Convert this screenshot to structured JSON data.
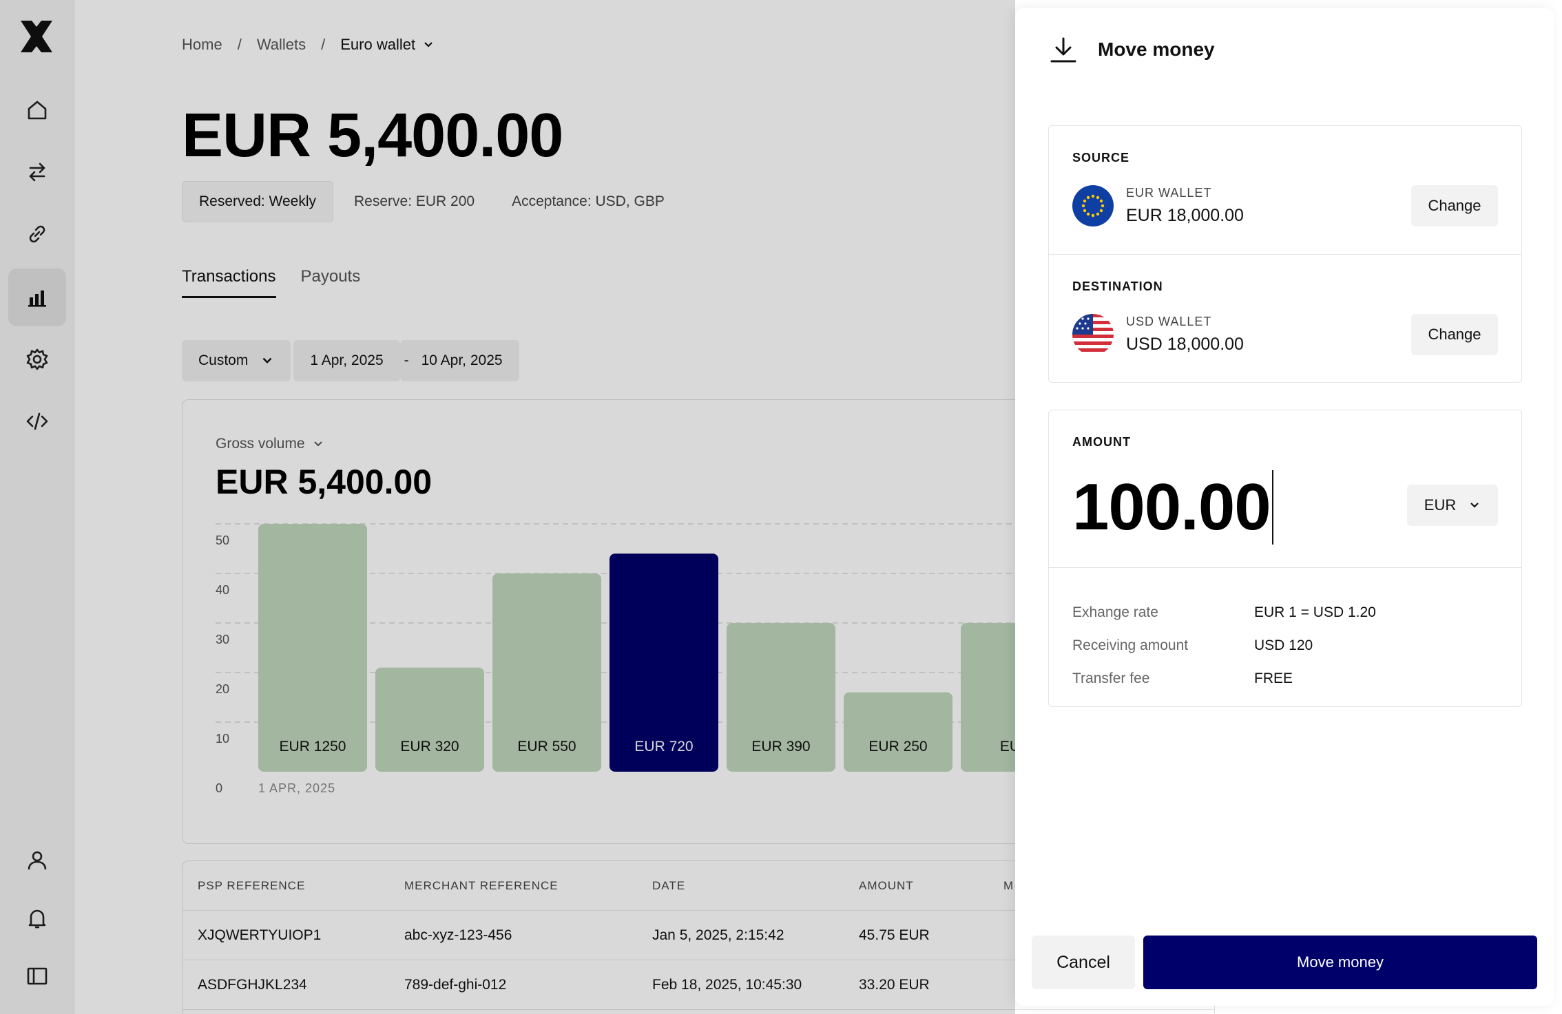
{
  "sidebar": {
    "logo": "brand-logo",
    "items": [
      {
        "name": "home",
        "icon": "home-icon"
      },
      {
        "name": "transfers",
        "icon": "arrows-icon"
      },
      {
        "name": "links",
        "icon": "link-icon"
      },
      {
        "name": "reports",
        "icon": "bar-chart-icon",
        "active": true
      },
      {
        "name": "settings",
        "icon": "gear-icon"
      },
      {
        "name": "developers",
        "icon": "code-icon"
      }
    ],
    "bottom": [
      {
        "name": "account",
        "icon": "user-icon"
      },
      {
        "name": "notifications",
        "icon": "bell-icon"
      },
      {
        "name": "toggle-sidebar",
        "icon": "sidebar-icon"
      }
    ]
  },
  "breadcrumb": {
    "home": "Home",
    "sep": "/",
    "wallets": "Wallets",
    "current": "Euro wallet"
  },
  "wallet": {
    "balance": "EUR 5,400.00",
    "reserved": "Reserved: Weekly",
    "reserve": "Reserve: EUR 200",
    "acceptance": "Acceptance: USD, GBP"
  },
  "tabs": [
    {
      "label": "Transactions",
      "active": true
    },
    {
      "label": "Payouts",
      "active": false
    }
  ],
  "filters": {
    "period": "Custom",
    "from": "1 Apr, 2025",
    "dash": "-",
    "to": "10 Apr, 2025"
  },
  "metric": {
    "label": "Gross volume",
    "value": "EUR 5,400.00"
  },
  "chart_data": {
    "type": "bar",
    "yticks": [
      0,
      10,
      20,
      30,
      40,
      50
    ],
    "ylim": [
      0,
      50
    ],
    "grid": true,
    "first_x_label": "1 APR, 2025",
    "categories": [
      "",
      "",
      "",
      "",
      "",
      "",
      ""
    ],
    "values": [
      50,
      21,
      40,
      44,
      30,
      16,
      30
    ],
    "data_labels": [
      "EUR 1250",
      "EUR 320",
      "EUR 550",
      "EUR 720",
      "EUR 390",
      "EUR 250",
      "EUR"
    ],
    "highlight_index": 3,
    "colors": {
      "bar": "#bfd6bc",
      "highlight": "#00006b"
    }
  },
  "table": {
    "headers": [
      "PSP REFERENCE",
      "MERCHANT REFERENCE",
      "DATE",
      "AMOUNT",
      "M"
    ],
    "rows": [
      [
        "XJQWERTYUIOP1",
        "abc-xyz-123-456",
        "Jan 5, 2025, 2:15:42",
        "45.75 EUR"
      ],
      [
        "ASDFGHJKL234",
        "789-def-ghi-012",
        "Feb 18, 2025, 10:45:30",
        "33.20 EUR"
      ]
    ]
  },
  "panel": {
    "title": "Move money",
    "icon": "download-icon",
    "source": {
      "label": "SOURCE",
      "wallet": "EUR WALLET",
      "balance": "EUR 18,000.00",
      "change": "Change",
      "flag": "eu-flag-icon"
    },
    "destination": {
      "label": "DESTINATION",
      "wallet": "USD WALLET",
      "balance": "USD 18,000.00",
      "change": "Change",
      "flag": "us-flag-icon"
    },
    "amount": {
      "label": "AMOUNT",
      "value": "100.00",
      "currency": "EUR"
    },
    "info": [
      {
        "label": "Exhange rate",
        "value": "EUR 1 = USD 1.20"
      },
      {
        "label": "Receiving amount",
        "value": "USD 120"
      },
      {
        "label": "Transfer fee",
        "value": "FREE"
      }
    ],
    "cancel": "Cancel",
    "submit": "Move money"
  },
  "colors": {
    "accent": "#00006b",
    "bar": "#bfd6bc"
  }
}
